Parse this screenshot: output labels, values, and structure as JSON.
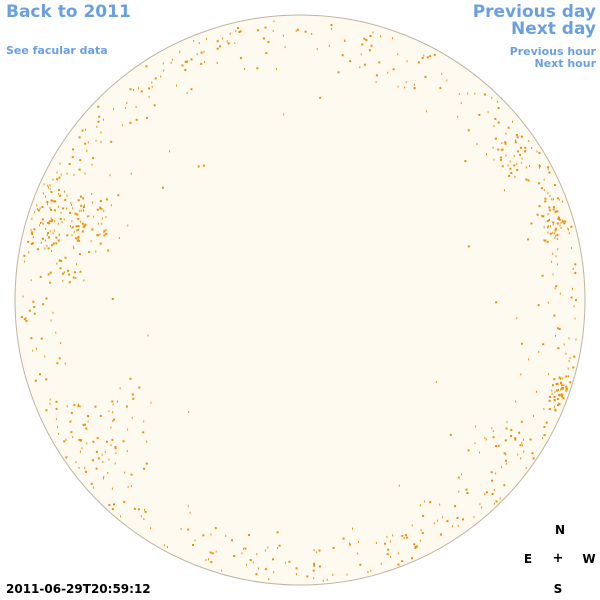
{
  "nav": {
    "back": "Back to 2011",
    "facular": "See facular data",
    "previous_day": "Previous day",
    "next_day": "Next day",
    "previous_hour": "Previous hour",
    "next_hour": "Next hour"
  },
  "compass": {
    "north": "N",
    "east": "E",
    "center": "+",
    "west": "W",
    "south": "S"
  },
  "timestamp": "2011-06-29T20:59:12",
  "colors": {
    "disk_fill": "#fefaf0",
    "disk_edge": "#bfb4a3",
    "facula": "#e8900a",
    "link": "#6aa0e0"
  }
}
